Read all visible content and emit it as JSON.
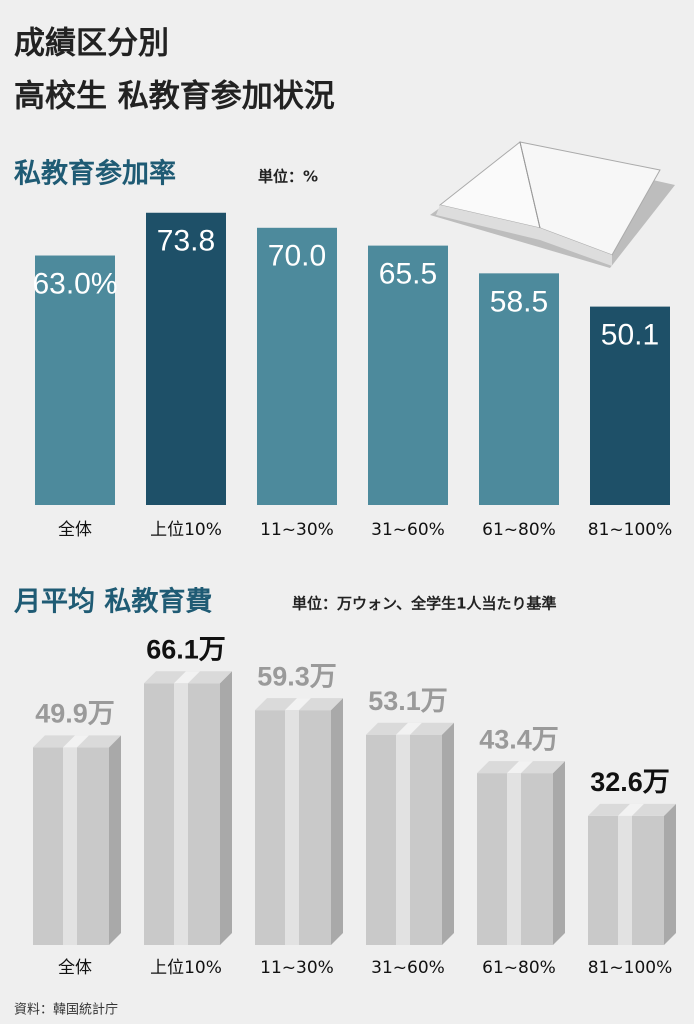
{
  "title": [
    "成績区分別",
    "高校生 私教育参加状況"
  ],
  "chart_data": [
    {
      "type": "bar",
      "title": "私教育参加率",
      "unit": "単位：%",
      "categories": [
        "全体",
        "上位10%",
        "11~30%",
        "31~60%",
        "61~80%",
        "81~100%"
      ],
      "values": [
        63.0,
        73.8,
        70.0,
        65.5,
        58.5,
        50.1
      ],
      "value_labels": [
        "63.0%",
        "73.8",
        "70.0",
        "65.5",
        "58.5",
        "50.1"
      ],
      "colors": [
        "#4d8a9c",
        "#1e5068",
        "#4d8a9c",
        "#4d8a9c",
        "#4d8a9c",
        "#1e5068"
      ]
    },
    {
      "type": "bar3d",
      "title": "月平均 私教育費",
      "unit": "単位：万ウォン、全学生1人当たり基準",
      "categories": [
        "全体",
        "上位10%",
        "11~30%",
        "31~60%",
        "61~80%",
        "81~100%"
      ],
      "values": [
        49.9,
        66.1,
        59.3,
        53.1,
        43.4,
        32.6
      ],
      "value_labels": [
        "49.9万",
        "66.1万",
        "59.3万",
        "53.1万",
        "43.4万",
        "32.6万"
      ],
      "color": "#c9c9c9",
      "label_colors": [
        "#9a9a9a",
        "#111111",
        "#9a9a9a",
        "#9a9a9a",
        "#9a9a9a",
        "#111111"
      ]
    }
  ],
  "source": "資料：韓国統計庁"
}
